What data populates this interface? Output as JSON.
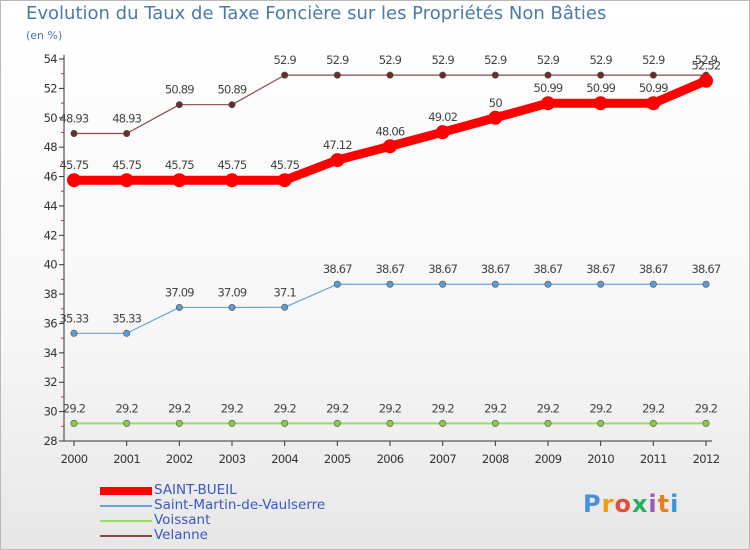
{
  "chart_data": {
    "type": "line",
    "title": "Evolution du Taux de Taxe Foncière sur les Propriétés Non Bâties",
    "subtitle": "(en %)",
    "x": [
      "2000",
      "2001",
      "2002",
      "2003",
      "2004",
      "2005",
      "2006",
      "2007",
      "2008",
      "2009",
      "2010",
      "2011",
      "2012"
    ],
    "ylim": [
      28,
      54
    ],
    "yticks": [
      28,
      30,
      32,
      34,
      36,
      38,
      40,
      42,
      44,
      46,
      48,
      50,
      52,
      54
    ],
    "grid": false,
    "legend_position": "bottom-left",
    "series": [
      {
        "name": "SAINT-BUEIL",
        "color": "#ff0000",
        "values": [
          45.75,
          45.75,
          45.75,
          45.75,
          45.75,
          47.12,
          48.06,
          49.02,
          50,
          50.99,
          50.99,
          50.99,
          52.52
        ],
        "labels": [
          "45.75",
          "45.75",
          "45.75",
          "45.75",
          "45.75",
          "47.12",
          "48.06",
          "49.02",
          "50",
          "50.99",
          "50.99",
          "50.99",
          "52.52"
        ]
      },
      {
        "name": "Saint-Martin-de-Vaulserre",
        "color": "#6ba3d6",
        "values": [
          35.33,
          35.33,
          37.09,
          37.09,
          37.1,
          38.67,
          38.67,
          38.67,
          38.67,
          38.67,
          38.67,
          38.67,
          38.67
        ],
        "labels": [
          "35.33",
          "35.33",
          "37.09",
          "37.09",
          "37.1",
          "38.67",
          "38.67",
          "38.67",
          "38.67",
          "38.67",
          "38.67",
          "38.67",
          "38.67"
        ]
      },
      {
        "name": "Voissant",
        "color": "#99dd66",
        "values": [
          29.2,
          29.2,
          29.2,
          29.2,
          29.2,
          29.2,
          29.2,
          29.2,
          29.2,
          29.2,
          29.2,
          29.2,
          29.2
        ],
        "labels": [
          "29.2",
          "29.2",
          "29.2",
          "29.2",
          "29.2",
          "29.2",
          "29.2",
          "29.2",
          "29.2",
          "29.2",
          "29.2",
          "29.2",
          "29.2"
        ]
      },
      {
        "name": "Velanne",
        "color": "#8b4a4a",
        "values": [
          48.93,
          48.93,
          50.89,
          50.89,
          52.9,
          52.9,
          52.9,
          52.9,
          52.9,
          52.9,
          52.9,
          52.9,
          52.9
        ],
        "labels": [
          "48.93",
          "48.93",
          "50.89",
          "50.89",
          "52.9",
          "52.9",
          "52.9",
          "52.9",
          "52.9",
          "52.9",
          "52.9",
          "52.9",
          "52.9"
        ]
      }
    ]
  },
  "branding": {
    "logo_letters": [
      "P",
      "r",
      "o",
      "x",
      "i",
      "t",
      "i"
    ],
    "logo_colors": [
      "#4a90d9",
      "#f39c12",
      "#e74c3c",
      "#27ae60",
      "#9b59b6",
      "#e67e22",
      "#3498db"
    ]
  }
}
